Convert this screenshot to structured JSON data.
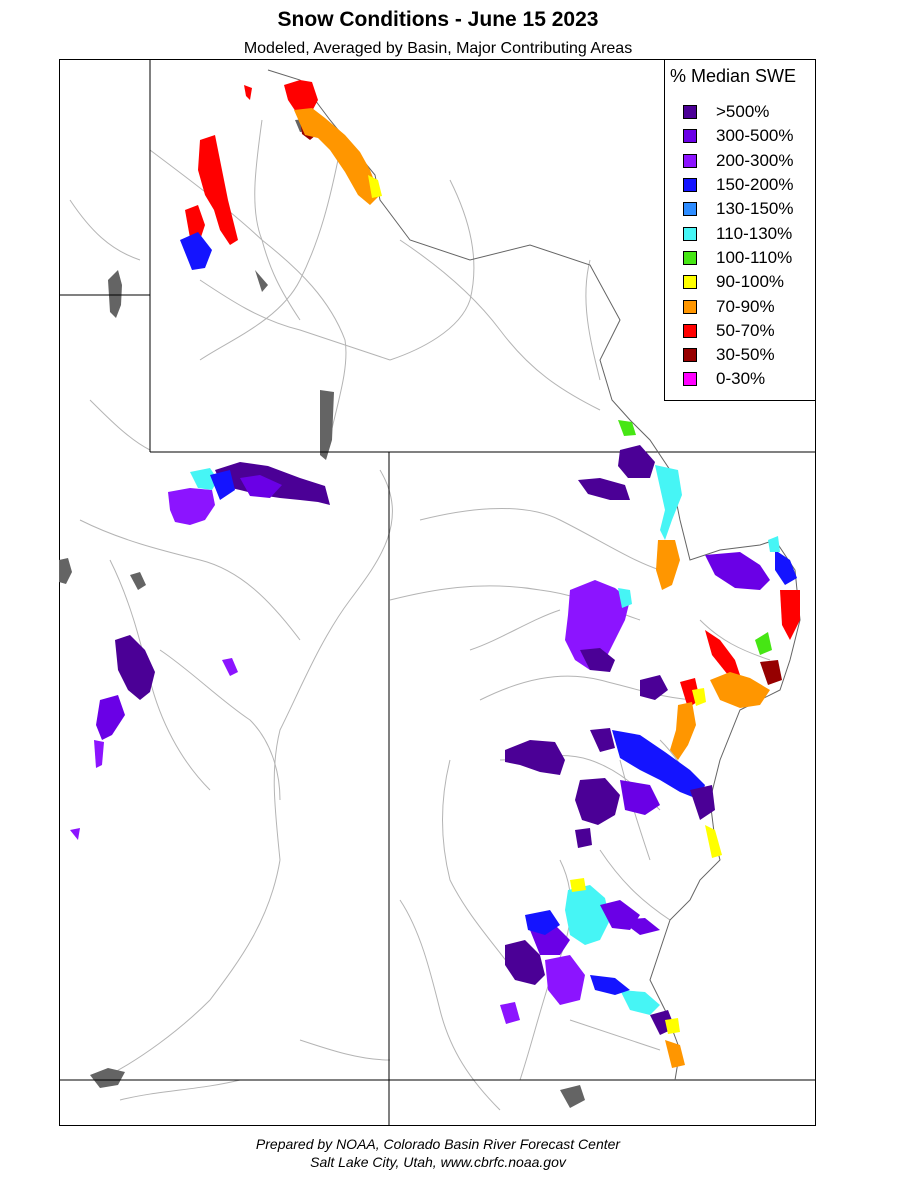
{
  "title": "Snow Conditions - June 15 2023",
  "subtitle": "Modeled, Averaged by Basin, Major Contributing Areas",
  "legend": {
    "title": "% Median SWE",
    "items": [
      {
        "label": ">500%",
        "color": "#4b0096"
      },
      {
        "label": "300-500%",
        "color": "#6a00e6"
      },
      {
        "label": "200-300%",
        "color": "#8c14ff"
      },
      {
        "label": "150-200%",
        "color": "#1414ff"
      },
      {
        "label": "130-150%",
        "color": "#2d8cff"
      },
      {
        "label": "110-130%",
        "color": "#46f5f5"
      },
      {
        "label": "100-110%",
        "color": "#46e614"
      },
      {
        "label": "90-100%",
        "color": "#ffff00"
      },
      {
        "label": "70-90%",
        "color": "#ff9600"
      },
      {
        "label": "50-70%",
        "color": "#ff0000"
      },
      {
        "label": "30-50%",
        "color": "#960000"
      },
      {
        "label": "0-30%",
        "color": "#ff00ff"
      }
    ]
  },
  "footer": {
    "line1": "Prepared by NOAA, Colorado Basin River Forecast Center",
    "line2": "Salt Lake City, Utah, www.cbrfc.noaa.gov"
  },
  "colors": {
    "state_border": "#000000",
    "river": "#b4b4b4",
    "lake": "#646464"
  }
}
